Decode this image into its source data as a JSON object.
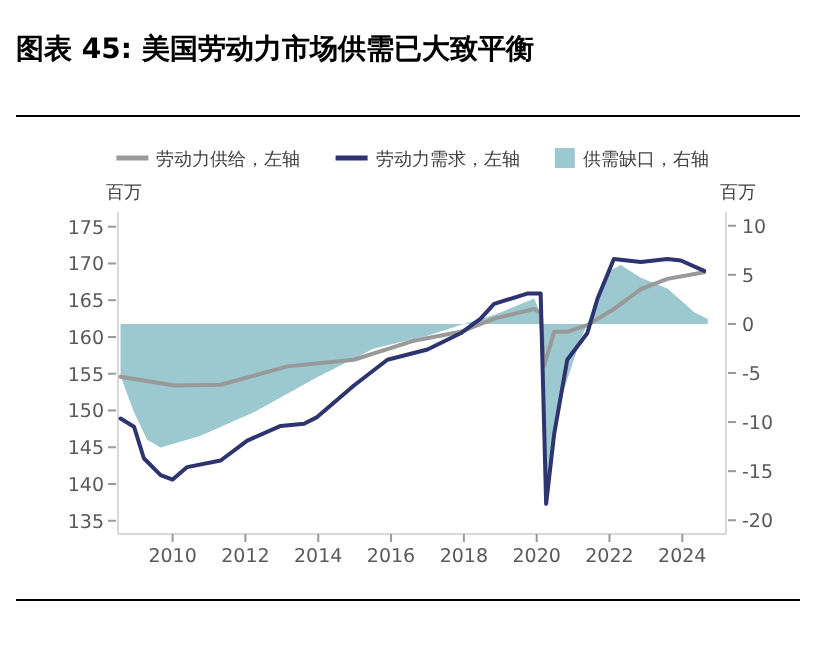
{
  "chart_data": {
    "type": "line",
    "title": "图表 45: 美国劳动力市场供需已大致平衡",
    "ylabel": "百万",
    "y2label": "百万",
    "legend": "top",
    "xlim": [
      2008.5,
      2025.2
    ],
    "xticks": [
      2010,
      2012,
      2014,
      2016,
      2018,
      2020,
      2022,
      2024
    ],
    "ylim": [
      133.2,
      177
    ],
    "yticks": [
      135,
      140,
      145,
      150,
      155,
      160,
      165,
      170,
      175
    ],
    "y2lim": [
      -21.4,
      11.4
    ],
    "y2ticks": [
      -20,
      -15,
      -10,
      -5,
      0,
      5,
      10
    ],
    "series": [
      {
        "name": "供需缺口，右轴",
        "type": "area",
        "axis": "y2",
        "color": "#9cc8d0",
        "x": [
          2008.57,
          2008.94,
          2009.3,
          2009.67,
          2010.77,
          2012.23,
          2013.88,
          2015.53,
          2017.0,
          2017.91,
          2018.83,
          2019.93,
          2020.11,
          2020.26,
          2020.66,
          2021.21,
          2021.39,
          2021.94,
          2022.31,
          2022.86,
          2023.59,
          2024.33,
          2024.7
        ],
        "values": [
          -5.3,
          -9,
          -11.8,
          -12.6,
          -11.4,
          -9,
          -5.6,
          -2.5,
          -1.2,
          -0.1,
          0.9,
          2.6,
          1,
          -17.9,
          -7.7,
          -1.5,
          0,
          5.3,
          6,
          4.7,
          3.6,
          1.2,
          0.5
        ]
      },
      {
        "name": "劳动力供给，左轴",
        "type": "line",
        "axis": "y",
        "color": "#999999",
        "x": [
          2008.57,
          2010.04,
          2011.32,
          2013.15,
          2014.98,
          2016.63,
          2017.91,
          2018.83,
          2019.93,
          2020.11,
          2020.2,
          2020.48,
          2020.84,
          2021.39,
          2022.12,
          2022.86,
          2023.59,
          2024.6
        ],
        "values": [
          154.6,
          153.4,
          153.5,
          156,
          156.9,
          159.5,
          160.7,
          162.5,
          163.8,
          163.3,
          156,
          160.7,
          160.7,
          161.6,
          163.8,
          166.5,
          167.9,
          168.8
        ]
      },
      {
        "name": "劳动力需求，左轴",
        "type": "line",
        "axis": "y",
        "color": "#2e3470",
        "x": [
          2008.57,
          2008.94,
          2009.21,
          2009.67,
          2010,
          2010.4,
          2011.32,
          2012.05,
          2012.97,
          2013.61,
          2013.97,
          2014.98,
          2015.9,
          2017.0,
          2017.91,
          2018.46,
          2018.83,
          2019.74,
          2020.11,
          2020.26,
          2020.48,
          2020.84,
          2021.39,
          2021.67,
          2022.12,
          2022.86,
          2023.59,
          2023.96,
          2024.6
        ],
        "values": [
          148.9,
          147.8,
          143.5,
          141.2,
          140.6,
          142.3,
          143.2,
          145.9,
          147.9,
          148.2,
          149.1,
          153.4,
          156.9,
          158.3,
          160.5,
          162.5,
          164.5,
          165.9,
          165.9,
          137.3,
          146.8,
          156.9,
          160.5,
          165.2,
          170.6,
          170.2,
          170.6,
          170.4,
          169
        ]
      }
    ]
  }
}
